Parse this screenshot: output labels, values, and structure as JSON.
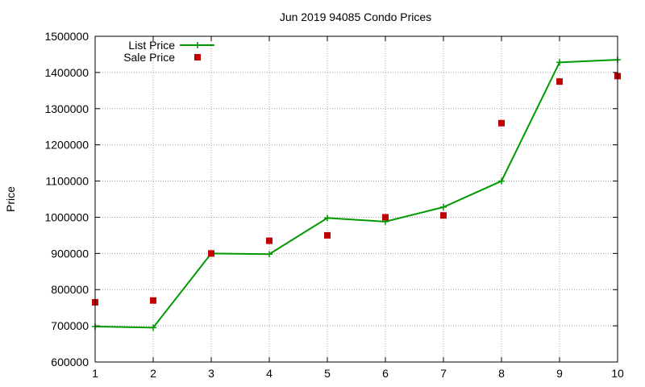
{
  "chart_data": {
    "type": "line",
    "title": "Jun 2019 94085 Condo Prices",
    "xlabel": "",
    "ylabel": "Price",
    "xlim": [
      1,
      10
    ],
    "ylim": [
      600000,
      1500000
    ],
    "x_ticks": [
      "1",
      "2",
      "3",
      "4",
      "5",
      "6",
      "7",
      "8",
      "9",
      "10"
    ],
    "y_ticks": [
      "600000",
      "700000",
      "800000",
      "900000",
      "1000000",
      "1100000",
      "1200000",
      "1300000",
      "1400000",
      "1500000"
    ],
    "grid": true,
    "legend_position": "top-left",
    "series": [
      {
        "name": "List Price",
        "style": "line-with-plus-markers",
        "color": "#009900",
        "x": [
          1,
          2,
          3,
          4,
          5,
          6,
          7,
          8,
          9,
          10
        ],
        "values": [
          698000,
          695000,
          900000,
          898000,
          998000,
          988000,
          1028000,
          1100000,
          1428000,
          1435000
        ]
      },
      {
        "name": "Sale Price",
        "style": "square-points",
        "color": "#c00000",
        "x": [
          1,
          2,
          3,
          4,
          5,
          6,
          7,
          8,
          9,
          10
        ],
        "values": [
          765000,
          770000,
          900000,
          935000,
          950000,
          1000000,
          1005000,
          1260000,
          1375000,
          1390000
        ]
      }
    ]
  }
}
